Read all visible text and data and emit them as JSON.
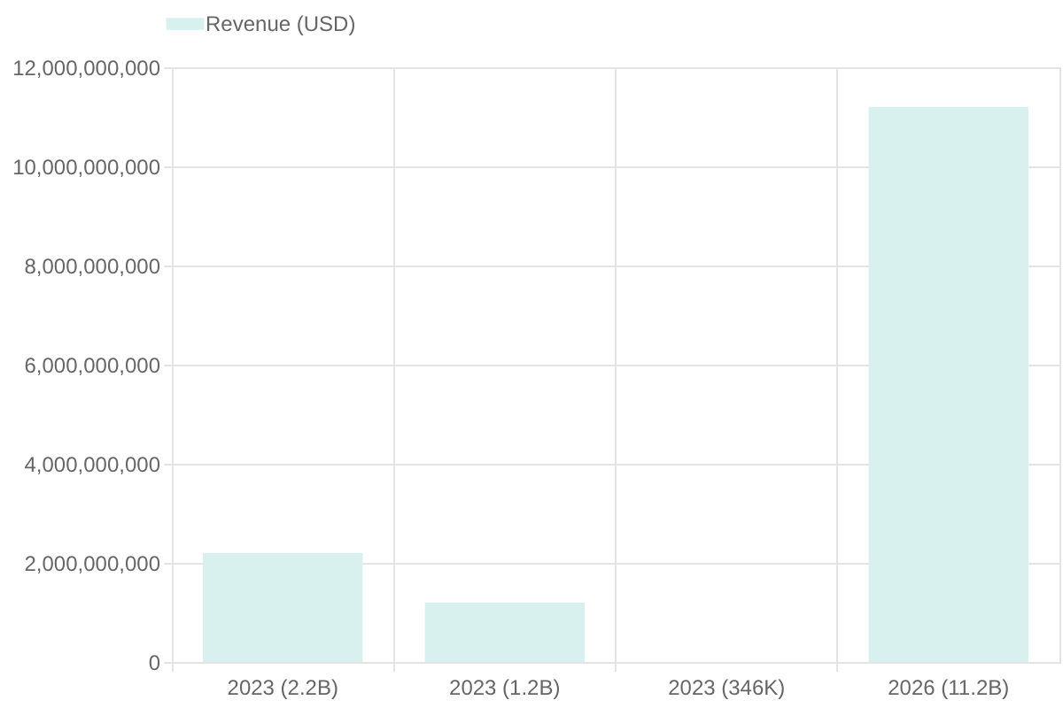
{
  "chart_data": {
    "type": "bar",
    "categories": [
      "2023 (2.2B)",
      "2023 (1.2B)",
      "2023 (346K)",
      "2026 (11.2B)"
    ],
    "series": [
      {
        "name": "Revenue (USD)",
        "color": "#d9f1ee",
        "values": [
          2200000000,
          1200000000,
          346000,
          11200000000
        ]
      }
    ],
    "ylim": [
      0,
      12000000000
    ],
    "yticks": [
      0,
      {
        "value": 2000000000,
        "label": "2,000,000,000"
      },
      {
        "value": 4000000000,
        "label": "4,000,000,000"
      },
      {
        "value": 6000000000,
        "label": "6,000,000,000"
      },
      {
        "value": 8000000000,
        "label": "8,000,000,000"
      },
      {
        "value": 10000000000,
        "label": "10,000,000,000"
      },
      {
        "value": 12000000000,
        "label": "12,000,000,000"
      }
    ],
    "grid": true,
    "legend": "top"
  }
}
